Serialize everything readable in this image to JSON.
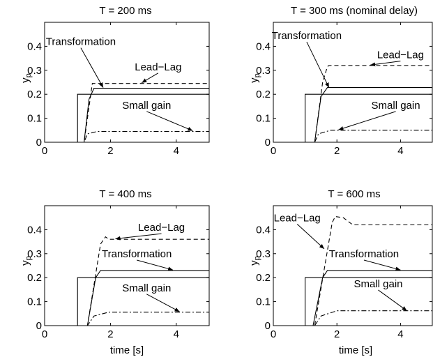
{
  "chart_data": [
    {
      "type": "line",
      "title": "T = 200 ms",
      "xlabel": "",
      "ylabel": "y",
      "ylabel_sub": "p",
      "xlim": [
        0,
        5
      ],
      "ylim": [
        0,
        0.5
      ],
      "xticks": [
        "0",
        "2",
        "4"
      ],
      "yticks": [
        "0",
        "0.1",
        "0.2",
        "0.3",
        "0.4"
      ],
      "series": [
        {
          "style": "solid",
          "points": [
            [
              0,
              0
            ],
            [
              1,
              0
            ],
            [
              1,
              0.2
            ],
            [
              5,
              0.2
            ]
          ]
        },
        {
          "style": "solid",
          "points": [
            [
              0,
              0
            ],
            [
              1.2,
              0
            ],
            [
              1.35,
              0.18
            ],
            [
              1.5,
              0.225
            ],
            [
              5,
              0.225
            ]
          ]
        },
        {
          "style": "dashed",
          "points": [
            [
              0,
              0
            ],
            [
              1.2,
              0
            ],
            [
              1.45,
              0.245
            ],
            [
              5,
              0.245
            ]
          ]
        },
        {
          "style": "dashdot",
          "points": [
            [
              0,
              0
            ],
            [
              1.2,
              0
            ],
            [
              1.3,
              0.035
            ],
            [
              1.6,
              0.045
            ],
            [
              5,
              0.045
            ]
          ]
        }
      ],
      "annotations": [
        {
          "text": "Transformation",
          "tx": 1.1,
          "ty": 0.405,
          "ax": 1.78,
          "ay": 0.228
        },
        {
          "text": "Lead−Lag",
          "tx": 3.45,
          "ty": 0.3,
          "ax": 2.95,
          "ay": 0.248
        },
        {
          "text": "Small gain",
          "tx": 3.1,
          "ty": 0.14,
          "ax": 4.5,
          "ay": 0.048
        }
      ]
    },
    {
      "type": "line",
      "title": "T = 300 ms (nominal delay)",
      "xlabel": "",
      "ylabel": "y",
      "ylabel_sub": "p",
      "xlim": [
        0,
        5
      ],
      "ylim": [
        0,
        0.5
      ],
      "xticks": [
        "0",
        "2",
        "4"
      ],
      "yticks": [
        "0",
        "0.1",
        "0.2",
        "0.3",
        "0.4"
      ],
      "series": [
        {
          "style": "solid",
          "points": [
            [
              0,
              0
            ],
            [
              1,
              0
            ],
            [
              1,
              0.2
            ],
            [
              5,
              0.2
            ]
          ]
        },
        {
          "style": "solid",
          "points": [
            [
              0,
              0
            ],
            [
              1.3,
              0
            ],
            [
              1.5,
              0.19
            ],
            [
              1.7,
              0.228
            ],
            [
              5,
              0.228
            ]
          ]
        },
        {
          "style": "dashed",
          "points": [
            [
              0,
              0
            ],
            [
              1.3,
              0
            ],
            [
              1.55,
              0.25
            ],
            [
              1.7,
              0.315
            ],
            [
              1.75,
              0.32
            ],
            [
              5,
              0.32
            ]
          ]
        },
        {
          "style": "dashdot",
          "points": [
            [
              0,
              0
            ],
            [
              1.3,
              0
            ],
            [
              1.42,
              0.035
            ],
            [
              1.8,
              0.05
            ],
            [
              5,
              0.05
            ]
          ]
        }
      ],
      "annotations": [
        {
          "text": "Transformation",
          "tx": 1.05,
          "ty": 0.43,
          "ax": 1.75,
          "ay": 0.228
        },
        {
          "text": "Lead−Lag",
          "tx": 4.0,
          "ty": 0.35,
          "ax": 3.05,
          "ay": 0.322
        },
        {
          "text": "Small gain",
          "tx": 3.85,
          "ty": 0.14,
          "ax": 2.05,
          "ay": 0.052
        }
      ]
    },
    {
      "type": "line",
      "title": "T = 400 ms",
      "xlabel": "time [s]",
      "ylabel": "y",
      "ylabel_sub": "p",
      "xlim": [
        0,
        5
      ],
      "ylim": [
        0,
        0.5
      ],
      "xticks": [
        "0",
        "2",
        "4"
      ],
      "yticks": [
        "0",
        "0.1",
        "0.2",
        "0.3",
        "0.4"
      ],
      "series": [
        {
          "style": "solid",
          "points": [
            [
              0,
              0
            ],
            [
              1,
              0
            ],
            [
              1,
              0.2
            ],
            [
              5,
              0.2
            ]
          ]
        },
        {
          "style": "solid",
          "points": [
            [
              0,
              0
            ],
            [
              1.3,
              0
            ],
            [
              1.55,
              0.2
            ],
            [
              1.7,
              0.23
            ],
            [
              5,
              0.23
            ]
          ]
        },
        {
          "style": "dashed",
          "points": [
            [
              0,
              0
            ],
            [
              1.3,
              0
            ],
            [
              1.7,
              0.34
            ],
            [
              1.85,
              0.37
            ],
            [
              1.95,
              0.36
            ],
            [
              5,
              0.36
            ]
          ]
        },
        {
          "style": "dashdot",
          "points": [
            [
              0,
              0
            ],
            [
              1.3,
              0
            ],
            [
              1.5,
              0.04
            ],
            [
              1.95,
              0.056
            ],
            [
              5,
              0.056
            ]
          ]
        }
      ],
      "annotations": [
        {
          "text": "Lead−Lag",
          "tx": 3.55,
          "ty": 0.395,
          "ax": 2.15,
          "ay": 0.362
        },
        {
          "text": "Transformation",
          "tx": 2.8,
          "ty": 0.285,
          "ax": 3.9,
          "ay": 0.232
        },
        {
          "text": "Small gain",
          "tx": 3.1,
          "ty": 0.143,
          "ax": 4.1,
          "ay": 0.058
        }
      ]
    },
    {
      "type": "line",
      "title": "T = 600 ms",
      "xlabel": "time [s]",
      "ylabel": "y",
      "ylabel_sub": "p",
      "xlim": [
        0,
        5
      ],
      "ylim": [
        0,
        0.5
      ],
      "xticks": [
        "0",
        "2",
        "4"
      ],
      "yticks": [
        "0",
        "0.1",
        "0.2",
        "0.3",
        "0.4"
      ],
      "series": [
        {
          "style": "solid",
          "points": [
            [
              0,
              0
            ],
            [
              1,
              0
            ],
            [
              1,
              0.2
            ],
            [
              5,
              0.2
            ]
          ]
        },
        {
          "style": "solid",
          "points": [
            [
              0,
              0
            ],
            [
              1.25,
              0
            ],
            [
              1.55,
              0.2
            ],
            [
              1.7,
              0.23
            ],
            [
              5,
              0.23
            ]
          ]
        },
        {
          "style": "dashed",
          "points": [
            [
              0,
              0
            ],
            [
              1.3,
              0
            ],
            [
              1.85,
              0.43
            ],
            [
              1.95,
              0.455
            ],
            [
              2.2,
              0.45
            ],
            [
              2.5,
              0.42
            ],
            [
              5,
              0.42
            ]
          ]
        },
        {
          "style": "dashdot",
          "points": [
            [
              0,
              0
            ],
            [
              1.3,
              0
            ],
            [
              1.5,
              0.04
            ],
            [
              2.0,
              0.062
            ],
            [
              5,
              0.062
            ]
          ]
        }
      ],
      "annotations": [
        {
          "text": "Lead−Lag",
          "tx": 0.75,
          "ty": 0.435,
          "ax": 1.6,
          "ay": 0.32
        },
        {
          "text": "Transformation",
          "tx": 2.85,
          "ty": 0.285,
          "ax": 4.0,
          "ay": 0.232
        },
        {
          "text": "Small gain",
          "tx": 3.3,
          "ty": 0.16,
          "ax": 4.2,
          "ay": 0.062
        }
      ]
    }
  ]
}
